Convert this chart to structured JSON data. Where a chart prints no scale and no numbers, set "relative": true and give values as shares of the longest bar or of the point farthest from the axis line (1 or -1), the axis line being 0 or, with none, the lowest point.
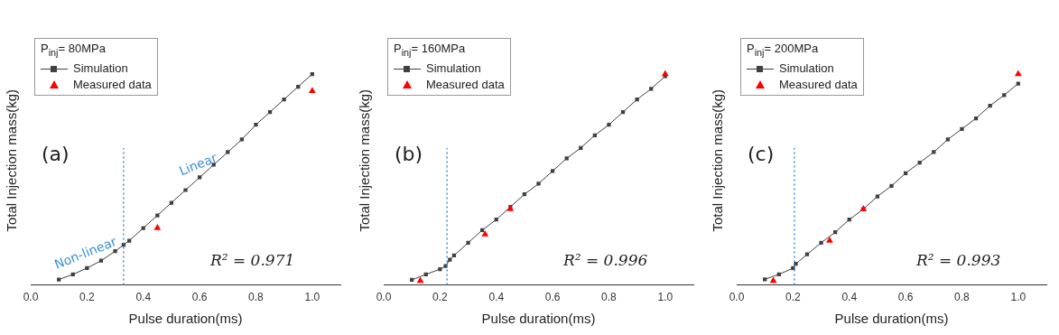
{
  "chart_data": [
    {
      "type": "line",
      "relative": true,
      "xlabel": "Pulse duration(ms)",
      "ylabel": "Total Injection mass(kg)",
      "legend_title": "P$_{inj}$= 80MPa",
      "legend": "top left",
      "xlim": [
        0,
        1.1
      ],
      "xticks": [
        {
          "value": 0,
          "label": "0.0"
        },
        {
          "value": 0.2,
          "label": "0.2"
        },
        {
          "value": 0.4,
          "label": "0.4"
        },
        {
          "value": 0.6,
          "label": "0.6"
        },
        {
          "value": 0.8,
          "label": "0.8"
        },
        {
          "value": 1,
          "label": "1.0"
        }
      ],
      "series": [
        {
          "name": "Simulation",
          "type": "line",
          "marker": "square",
          "color": "#404040",
          "x": [
            0.1,
            0.15,
            0.2,
            0.25,
            0.3,
            0.33,
            0.35,
            0.4,
            0.45,
            0.5,
            0.55,
            0.6,
            0.65,
            0.7,
            0.75,
            0.8,
            0.85,
            0.9,
            0.95,
            1.0
          ],
          "values": [
            0.026,
            0.05,
            0.08,
            0.115,
            0.16,
            0.19,
            0.21,
            0.27,
            0.33,
            0.39,
            0.45,
            0.51,
            0.57,
            0.63,
            0.69,
            0.76,
            0.82,
            0.88,
            0.94,
            1.0
          ]
        },
        {
          "name": "Measured data",
          "type": "scatter",
          "marker": "triangle",
          "color": "#ff0000",
          "x": [
            0.45,
            1.0
          ],
          "values": [
            0.27,
            0.92
          ]
        }
      ],
      "ref_lines": [
        {
          "axis": "x",
          "value": 0.33,
          "color": "#3a8fd6",
          "line_style": "dotted"
        }
      ],
      "annotations": [
        "(a)",
        "R² = 0.971",
        {
          "text": "Non-linear",
          "x": 0.2,
          "y": 0.09
        },
        {
          "text": "Linear",
          "x": 0.6,
          "y": 0.51
        }
      ]
    },
    {
      "type": "line",
      "relative": true,
      "xlabel": "Pulse duration(ms)",
      "ylabel": "Total Injection mass(kg)",
      "legend_title": "P$_{inj}$= 160MPa",
      "legend": "top left",
      "xlim": [
        0,
        1.1
      ],
      "xticks": [
        {
          "value": 0,
          "label": "0.0"
        },
        {
          "value": 0.2,
          "label": "0.2"
        },
        {
          "value": 0.4,
          "label": "0.4"
        },
        {
          "value": 0.6,
          "label": "0.6"
        },
        {
          "value": 0.8,
          "label": "0.8"
        },
        {
          "value": 1,
          "label": "1.0"
        }
      ],
      "series": [
        {
          "name": "Simulation",
          "type": "line",
          "marker": "square",
          "color": "#404040",
          "x": [
            0.1,
            0.15,
            0.2,
            0.22,
            0.235,
            0.25,
            0.3,
            0.35,
            0.4,
            0.45,
            0.5,
            0.55,
            0.6,
            0.65,
            0.7,
            0.75,
            0.8,
            0.85,
            0.9,
            0.95,
            1.0
          ],
          "values": [
            0.024,
            0.05,
            0.075,
            0.09,
            0.12,
            0.14,
            0.2,
            0.26,
            0.31,
            0.37,
            0.43,
            0.48,
            0.54,
            0.6,
            0.65,
            0.71,
            0.76,
            0.82,
            0.88,
            0.93,
            0.99
          ]
        },
        {
          "name": "Measured data",
          "type": "scatter",
          "marker": "triangle",
          "color": "#ff0000",
          "x": [
            0.13,
            0.36,
            0.45,
            1.0
          ],
          "values": [
            0.02,
            0.24,
            0.36,
            1.0
          ]
        }
      ],
      "ref_lines": [
        {
          "axis": "x",
          "value": 0.225,
          "color": "#3a8fd6",
          "line_style": "dotted"
        }
      ],
      "annotations": [
        "(b)",
        "R² = 0.996"
      ]
    },
    {
      "type": "line",
      "relative": true,
      "xlabel": "Pulse duration(ms)",
      "ylabel": "Total Injection mass(kg)",
      "legend_title": "P$_{inj}$= 200MPa",
      "legend": "top left",
      "xlim": [
        0,
        1.1
      ],
      "xticks": [
        {
          "value": 0,
          "label": "0.0"
        },
        {
          "value": 0.2,
          "label": "0.2"
        },
        {
          "value": 0.4,
          "label": "0.4"
        },
        {
          "value": 0.6,
          "label": "0.6"
        },
        {
          "value": 0.8,
          "label": "0.8"
        },
        {
          "value": 1,
          "label": "1.0"
        }
      ],
      "series": [
        {
          "name": "Simulation",
          "type": "line",
          "marker": "square",
          "color": "#404040",
          "x": [
            0.1,
            0.15,
            0.2,
            0.21,
            0.25,
            0.3,
            0.35,
            0.4,
            0.45,
            0.5,
            0.55,
            0.6,
            0.65,
            0.7,
            0.75,
            0.8,
            0.85,
            0.9,
            0.95,
            1.0
          ],
          "values": [
            0.027,
            0.05,
            0.08,
            0.1,
            0.145,
            0.2,
            0.25,
            0.31,
            0.36,
            0.42,
            0.47,
            0.53,
            0.58,
            0.63,
            0.69,
            0.74,
            0.79,
            0.85,
            0.9,
            0.955
          ]
        },
        {
          "name": "Measured data",
          "type": "scatter",
          "marker": "triangle",
          "color": "#ff0000",
          "x": [
            0.13,
            0.33,
            0.45,
            1.0
          ],
          "values": [
            0.02,
            0.21,
            0.36,
            1.0
          ]
        }
      ],
      "ref_lines": [
        {
          "axis": "x",
          "value": 0.205,
          "color": "#3a8fd6",
          "line_style": "dotted"
        }
      ],
      "annotations": [
        "(c)",
        "R² = 0.993"
      ]
    }
  ]
}
